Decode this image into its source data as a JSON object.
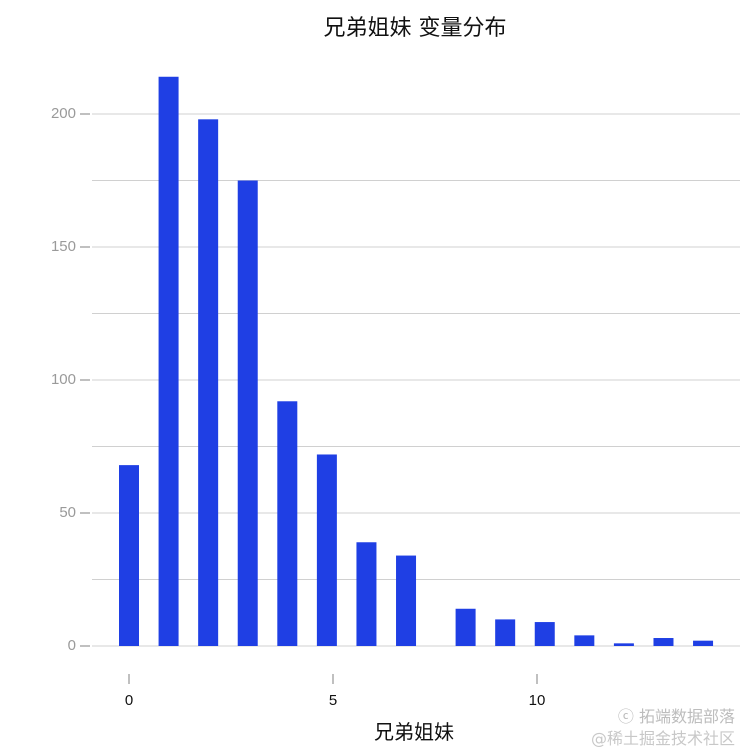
{
  "title": "兄弟姐妹 变量分布",
  "xlabel": "兄弟姐妹",
  "ylabel": "",
  "watermark": {
    "line1": "拓端数据部落",
    "line2": "@稀土掘金技术社区"
  },
  "colors": {
    "bar": "#1f3fe4",
    "grid": "#d0d0d0",
    "ytick_text": "#9a9a9a"
  },
  "chart_data": {
    "type": "bar",
    "title": "兄弟姐妹 变量分布",
    "xlabel": "兄弟姐妹",
    "ylabel": "",
    "x_tick_labels": [
      "0",
      "5",
      "10"
    ],
    "y_tick_labels": [
      "0",
      "50",
      "100",
      "150",
      "200"
    ],
    "ylim": [
      0,
      225
    ],
    "xlim": [
      -0.5,
      14.5
    ],
    "grid": true,
    "categories": [
      0,
      0.97,
      1.94,
      2.91,
      3.88,
      4.85,
      5.82,
      6.79,
      8.25,
      9.22,
      10.19,
      11.16,
      12.13,
      13.1,
      14.07
    ],
    "values": [
      68,
      214,
      198,
      175,
      92,
      72,
      39,
      34,
      14,
      10,
      9,
      4,
      1,
      3,
      2
    ]
  }
}
